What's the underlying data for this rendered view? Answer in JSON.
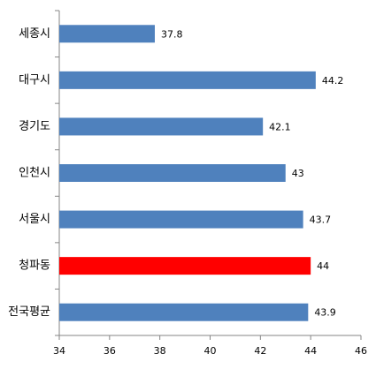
{
  "chart_data": {
    "type": "barh",
    "categories": [
      "세종시",
      "대구시",
      "경기도",
      "인천시",
      "서울시",
      "청파동",
      "전국평균"
    ],
    "values": [
      37.8,
      44.2,
      42.1,
      43,
      43.7,
      44,
      43.9
    ],
    "colors": [
      "#4f81bd",
      "#4f81bd",
      "#4f81bd",
      "#4f81bd",
      "#4f81bd",
      "#ff0000",
      "#4f81bd"
    ],
    "xlim": [
      34,
      46
    ],
    "xticks": [
      34,
      36,
      38,
      40,
      42,
      44,
      46
    ],
    "grid": false
  }
}
